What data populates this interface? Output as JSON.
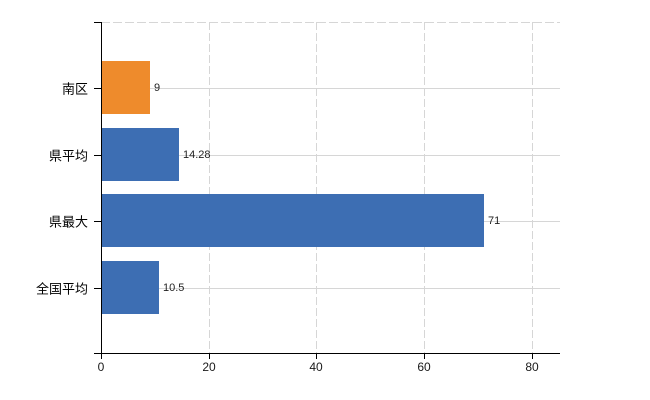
{
  "chart_data": {
    "type": "bar",
    "orientation": "horizontal",
    "title": "",
    "xlabel": "",
    "ylabel": "",
    "categories": [
      "南区",
      "県平均",
      "県最大",
      "全国平均"
    ],
    "values": [
      9,
      14.28,
      71,
      10.5
    ],
    "value_labels": [
      "9",
      "14.28",
      "71",
      "10.5"
    ],
    "series": [
      {
        "name": "",
        "values": [
          9,
          14.28,
          71,
          10.5
        ]
      }
    ],
    "bar_colors": [
      "#ee8b2c",
      "#3d6eb3",
      "#3d6eb3",
      "#3d6eb3"
    ],
    "x_ticks": [
      0,
      20,
      40,
      60,
      80
    ],
    "x_tick_labels": [
      "0",
      "20",
      "40",
      "60",
      "80"
    ],
    "xlim": [
      0,
      85.2
    ],
    "grid": true,
    "legend": false,
    "grid_color": "#d6d6d6",
    "axis_color": "#000000",
    "text_color": "#1a1a1a"
  }
}
